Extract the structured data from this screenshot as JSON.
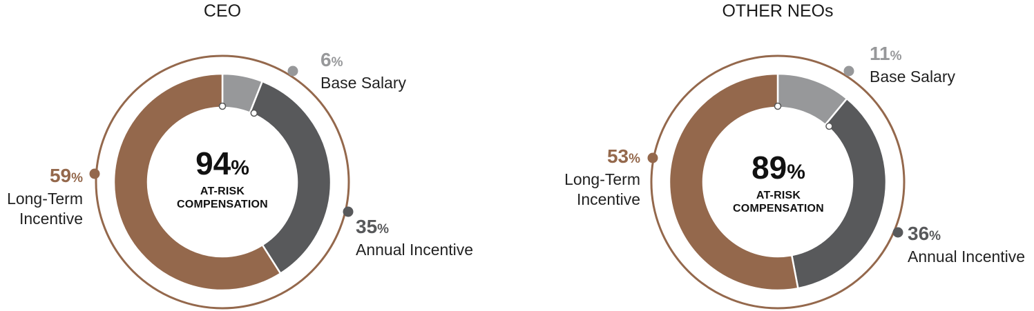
{
  "colors": {
    "long_term": "#94684C",
    "annual": "#58595B",
    "base": "#97989A",
    "ring": "#94684C"
  },
  "chart_data": [
    {
      "type": "pie",
      "title": "CEO",
      "center": {
        "value": "94",
        "unit": "%",
        "label_line1": "AT-RISK",
        "label_line2": "COMPENSATION"
      },
      "slices": [
        {
          "key": "base",
          "value": 6,
          "value_text": "6",
          "unit": "%",
          "label_lines": [
            "Base Salary"
          ]
        },
        {
          "key": "annual",
          "value": 35,
          "value_text": "35",
          "unit": "%",
          "label_lines": [
            "Annual Incentive"
          ]
        },
        {
          "key": "long_term",
          "value": 59,
          "value_text": "59",
          "unit": "%",
          "label_lines": [
            "Long-Term",
            "Incentive"
          ]
        }
      ]
    },
    {
      "type": "pie",
      "title": "OTHER NEOs",
      "center": {
        "value": "89",
        "unit": "%",
        "label_line1": "AT-RISK",
        "label_line2": "COMPENSATION"
      },
      "slices": [
        {
          "key": "base",
          "value": 11,
          "value_text": "11",
          "unit": "%",
          "label_lines": [
            "Base Salary"
          ]
        },
        {
          "key": "annual",
          "value": 36,
          "value_text": "36",
          "unit": "%",
          "label_lines": [
            "Annual Incentive"
          ]
        },
        {
          "key": "long_term",
          "value": 53,
          "value_text": "53",
          "unit": "%",
          "label_lines": [
            "Long-Term",
            "Incentive"
          ]
        }
      ]
    }
  ]
}
